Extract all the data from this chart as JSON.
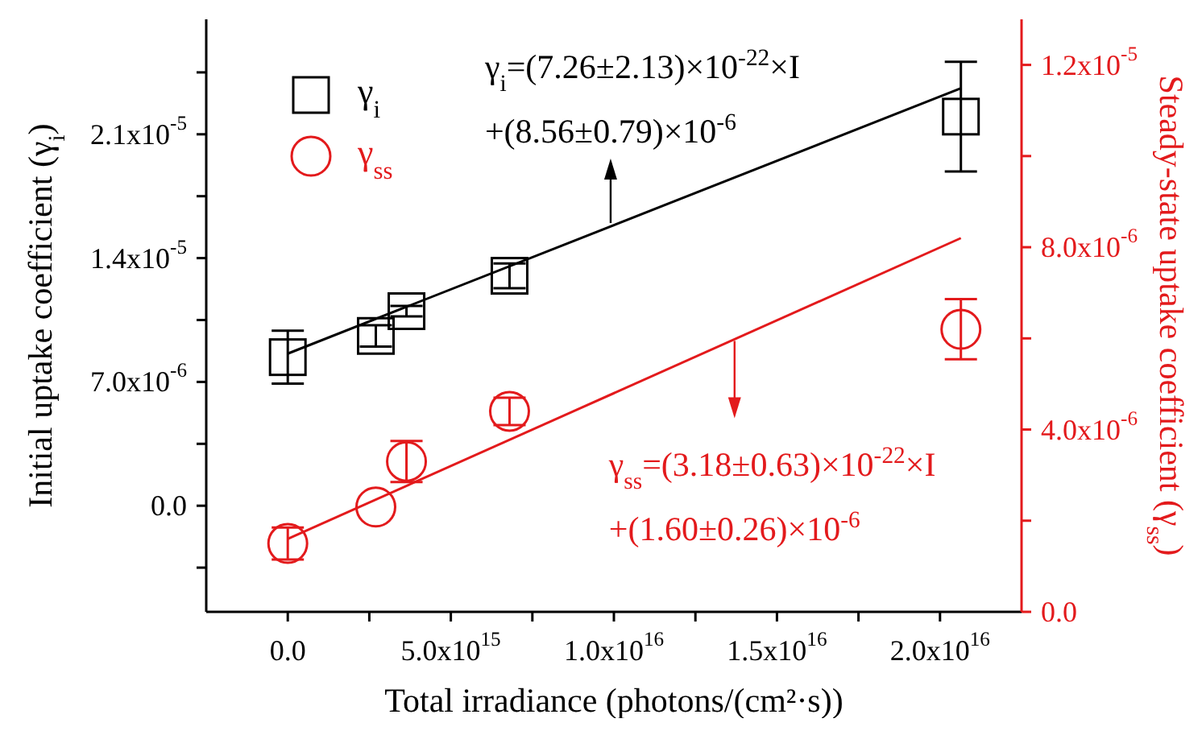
{
  "chart_data": {
    "type": "scatter",
    "xlabel": "Total irradiance (photons/(cm²·s))",
    "ylabel": "Initial uptake coefficient (γ$_{i}$)",
    "y2label": "Steady-state uptake coefficient (γ$_{ss}$)",
    "xlim": [
      -2500000000000000.0,
      2.25e+16
    ],
    "xticks": [
      {
        "value": 0,
        "label": "0.0"
      },
      {
        "value": 2500000000000000.0,
        "label": null
      },
      {
        "value": 5000000000000000.0,
        "label": "5.0x10$^{15}$"
      },
      {
        "value": 7500000000000000.0,
        "label": null
      },
      {
        "value": 1e+16,
        "label": "1.0x10$^{16}$"
      },
      {
        "value": 1.25e+16,
        "label": null
      },
      {
        "value": 1.5e+16,
        "label": "1.5x10$^{16}$"
      },
      {
        "value": 1.75e+16,
        "label": null
      },
      {
        "value": 2e+16,
        "label": "2.0x10$^{16}$"
      }
    ],
    "ylim": [
      -6e-06,
      2.75e-05
    ],
    "yticks": [
      {
        "value": -3.5e-06,
        "label": null
      },
      {
        "value": 0,
        "label": "0.0"
      },
      {
        "value": 3.5e-06,
        "label": null
      },
      {
        "value": 7e-06,
        "label": "7.0x10$^{-6}$"
      },
      {
        "value": 1.05e-05,
        "label": null
      },
      {
        "value": 1.4e-05,
        "label": "1.4x10$^{-5}$"
      },
      {
        "value": 1.75e-05,
        "label": null
      },
      {
        "value": 2.1e-05,
        "label": "2.1x10$^{-5}$"
      },
      {
        "value": 2.45e-05,
        "label": null
      }
    ],
    "y2lim": [
      0,
      1.3e-05
    ],
    "y2ticks": [
      {
        "value": 0,
        "label": "0.0"
      },
      {
        "value": 2e-06,
        "label": null
      },
      {
        "value": 4e-06,
        "label": "4.0x10$^{-6}$"
      },
      {
        "value": 6e-06,
        "label": null
      },
      {
        "value": 8e-06,
        "label": "8.0x10$^{-6}$"
      },
      {
        "value": 1e-05,
        "label": null
      },
      {
        "value": 1.2e-05,
        "label": "1.2x10$^{-5}$"
      }
    ],
    "legend": "top left",
    "grid": false,
    "series": [
      {
        "name": "γ$_{i}$",
        "color": "#000000",
        "marker": "square",
        "x": [
          0,
          2700000000000000.0,
          3640000000000000.0,
          6800000000000000.0,
          2.064e+16
        ],
        "values": [
          8.4e-06,
          9.6e-06,
          1.1e-05,
          1.3e-05,
          2.2e-05
        ],
        "errors": [
          1.5e-06,
          6e-07,
          3e-07,
          7e-07,
          3.1e-06
        ]
      },
      {
        "name": "γ$_{ss}$",
        "color": "#e31a1c",
        "axis": "y2",
        "marker": "circle",
        "x": [
          0,
          2700000000000000.0,
          3640000000000000.0,
          6800000000000000.0,
          2.064e+16
        ],
        "values": [
          1.5e-06,
          2.3e-06,
          3.3e-06,
          4.4e-06,
          6.2e-06
        ],
        "errors": [
          3.5e-07,
          null,
          4.5e-07,
          3e-07,
          6.6e-07
        ]
      },
      {
        "type": "line",
        "color": "#000000",
        "line_style": "solid",
        "x": [
          0,
          2.064e+16
        ],
        "values": [
          8.6e-06,
          2.36e-05
        ]
      },
      {
        "type": "line",
        "color": "#e31a1c",
        "axis": "y2",
        "line_style": "solid",
        "x": [
          0,
          2.064e+16
        ],
        "values": [
          1.6e-06,
          8.2e-06
        ]
      }
    ],
    "annotations": [
      "γ$_{i}$=(7.26±2.13)×10$^{-22}$×I",
      {
        "text": "+(8.56±0.79)×10$^{-6}$",
        "x": 9900000000000000.0,
        "y": 1.58e-05
      },
      {
        "text": "γ$_{ss}$=(3.18±0.63)×10$^{-22}$×I",
        "x": 1.37e+16,
        "y": 9.5e-06
      },
      "+(1.60±0.26)×10$^{-6}$"
    ]
  }
}
